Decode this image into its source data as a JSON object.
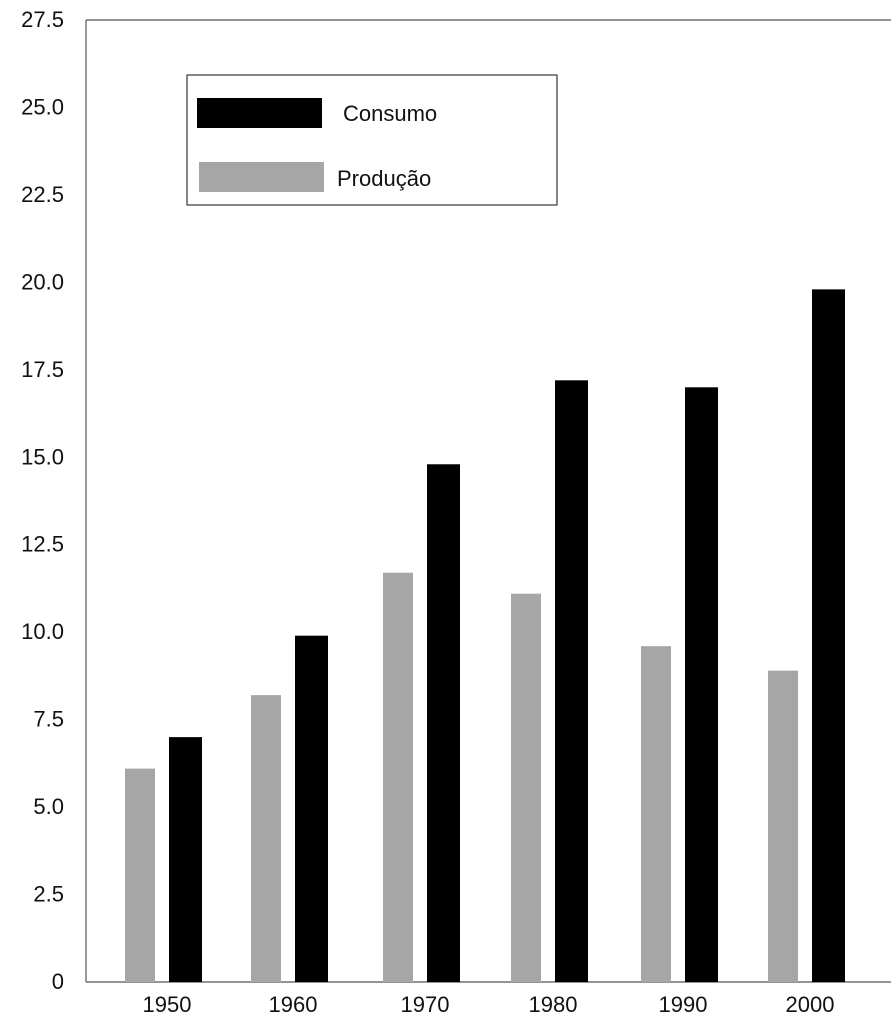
{
  "chart_data": {
    "type": "bar",
    "title": "",
    "xlabel": "",
    "ylabel": "",
    "categories": [
      "1950",
      "1960",
      "1970",
      "1980",
      "1990",
      "2000"
    ],
    "series": [
      {
        "name": "Produção",
        "color": "#a6a6a6",
        "values": [
          6.1,
          8.2,
          11.7,
          11.1,
          9.6,
          8.9
        ]
      },
      {
        "name": "Consumo",
        "color": "#000000",
        "values": [
          7.0,
          9.9,
          14.8,
          17.2,
          17.0,
          19.8
        ]
      }
    ],
    "ylim": [
      0,
      27.5
    ],
    "yticks": [
      "0",
      "2.5",
      "5.0",
      "7.5",
      "10.0",
      "12.5",
      "15.0",
      "17.5",
      "20.0",
      "22.5",
      "25.0",
      "27.5"
    ],
    "legend": {
      "position": "top-left",
      "entries": [
        {
          "label": "Consumo",
          "color": "#000000"
        },
        {
          "label": "Produção",
          "color": "#a6a6a6"
        }
      ]
    },
    "grid": false
  }
}
